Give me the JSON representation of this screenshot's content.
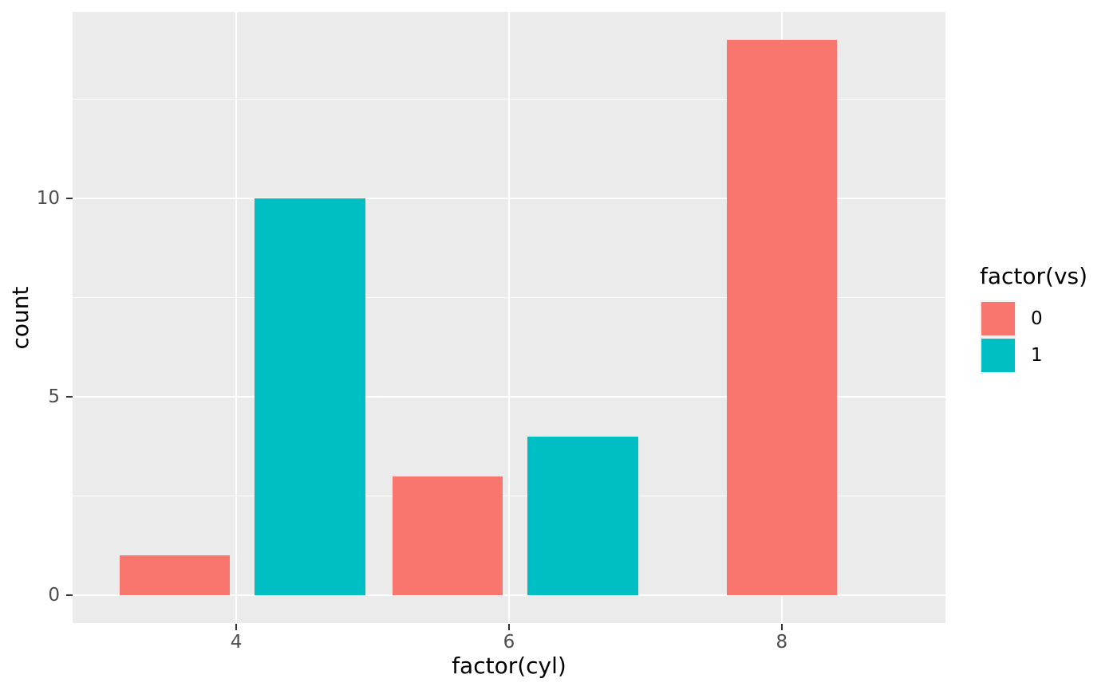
{
  "chart_data": {
    "type": "bar",
    "title": "",
    "xlabel": "factor(cyl)",
    "ylabel": "count",
    "categories": [
      "4",
      "6",
      "8"
    ],
    "series": [
      {
        "name": "0",
        "color": "#F8766D",
        "values": [
          1,
          3,
          14
        ]
      },
      {
        "name": "1",
        "color": "#00BFC4",
        "values": [
          10,
          4,
          0
        ]
      }
    ],
    "ylim": [
      0,
      14
    ],
    "y_major_ticks": [
      0,
      5,
      10
    ],
    "y_minor_ticks": [
      2.5,
      7.5,
      12.5
    ],
    "grid": "on",
    "panel_bg": "#EBEBEB",
    "grid_color": "#FFFFFF",
    "legend": {
      "position": "right",
      "title": "factor(vs)",
      "entries": [
        {
          "label": "0",
          "color": "#F8766D"
        },
        {
          "label": "1",
          "color": "#00BFC4"
        }
      ]
    }
  }
}
